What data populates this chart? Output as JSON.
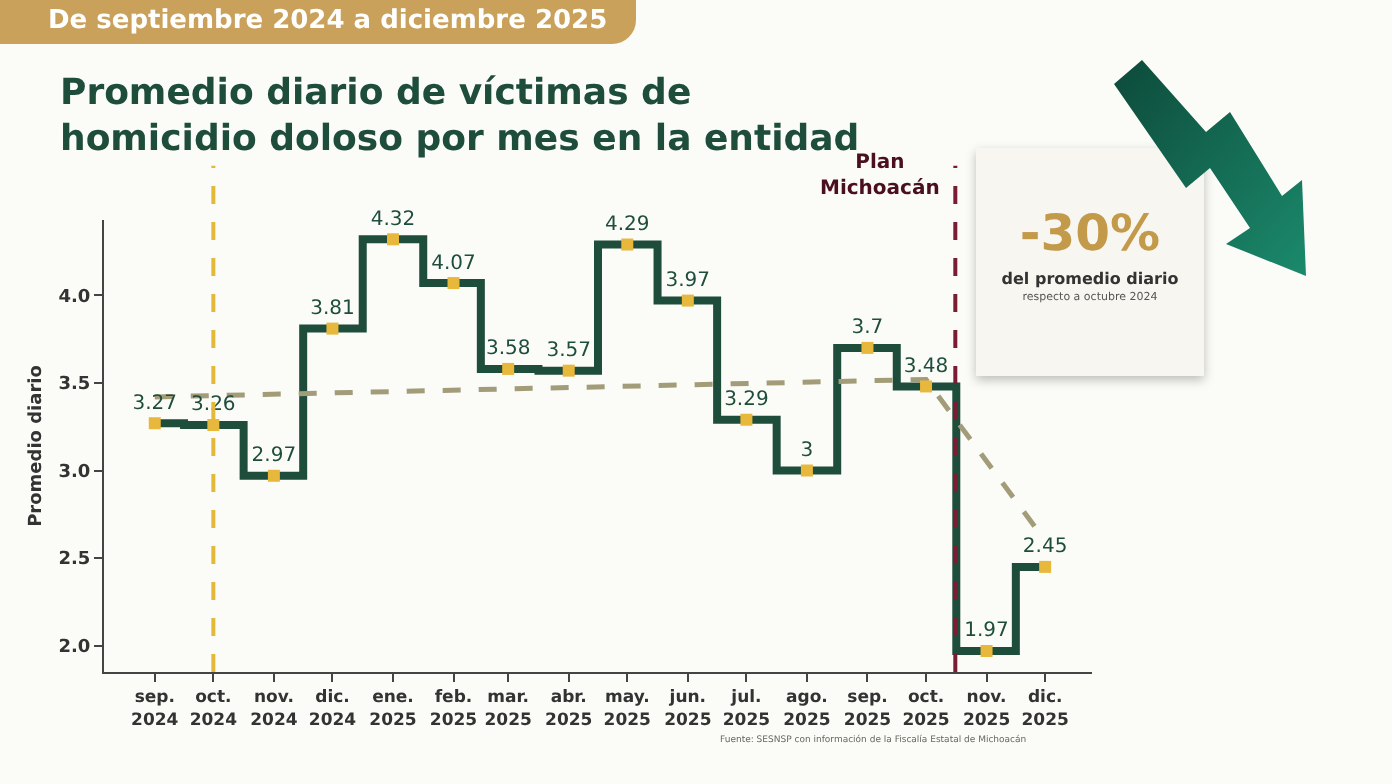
{
  "chart_data": {
    "type": "step",
    "title": "Promedio diario de víctimas de homicidio doloso por mes en la entidad",
    "subtitle": "De septiembre 2024 a diciembre 2025",
    "ylabel": "Promedio diario",
    "x": [
      "2024-09",
      "2024-10",
      "2024-11",
      "2024-12",
      "2025-01",
      "2025-02",
      "2025-03",
      "2025-04",
      "2025-05",
      "2025-06",
      "2025-07",
      "2025-08",
      "2025-09",
      "2025-10",
      "2025-11",
      "2025-12"
    ],
    "series": [
      {
        "color": "#1e4d3b",
        "marker": "square",
        "values": [
          3.27,
          3.26,
          2.97,
          3.81,
          4.32,
          4.07,
          3.58,
          3.57,
          4.29,
          3.97,
          3.29,
          3,
          3.7,
          3.48,
          1.97,
          2.45
        ]
      },
      {
        "type": "line",
        "color": "#a39c79",
        "line_style": "dashed",
        "marker": "none",
        "x": [
          "2024-09",
          "2025-10",
          "2025-12"
        ],
        "values": [
          3.42,
          3.52,
          2.6
        ],
        "value_labels": [
          null,
          null,
          null
        ]
      }
    ],
    "data_labels": true,
    "xlim": [
      "2024-08-06",
      "2025-12-25"
    ],
    "xticks": [
      {
        "value": "2024-09",
        "label": "sep. 2024"
      },
      {
        "value": "2024-10",
        "label": "oct. 2024"
      },
      {
        "value": "2024-11",
        "label": "nov. 2024"
      },
      {
        "value": "2024-12",
        "label": "dic. 2024"
      },
      {
        "value": "2025-01",
        "label": "ene. 2025"
      },
      {
        "value": "2025-02",
        "label": "feb. 2025"
      },
      {
        "value": "2025-03",
        "label": "mar. 2025"
      },
      {
        "value": "2025-04",
        "label": "abr. 2025"
      },
      {
        "value": "2025-05",
        "label": "may. 2025"
      },
      {
        "value": "2025-06",
        "label": "jun. 2025"
      },
      {
        "value": "2025-07",
        "label": "jul. 2025"
      },
      {
        "value": "2025-08",
        "label": "ago. 2025"
      },
      {
        "value": "2025-09",
        "label": "sep. 2025"
      },
      {
        "value": "2025-10",
        "label": "oct. 2025"
      },
      {
        "value": "2025-11",
        "label": "nov. 2025"
      },
      {
        "value": "2025-12",
        "label": "dic. 2025"
      }
    ],
    "ylim": [
      1.85,
      4.43
    ],
    "yticks": [
      {
        "value": 2,
        "label": "2.0"
      },
      {
        "value": 2.5,
        "label": "2.5"
      },
      {
        "value": 3,
        "label": "3.0"
      },
      {
        "value": 3.5,
        "label": "3.5"
      },
      {
        "value": 4,
        "label": "4.0"
      }
    ],
    "ref_lines": [
      {
        "axis": "x",
        "value": "2024-10",
        "color": "#e2b93b",
        "line_style": "dashed"
      },
      {
        "axis": "x",
        "value": "2025-10-16",
        "label": "Plan Michoacán",
        "color": "#7a1d33",
        "line_style": "dashed"
      }
    ],
    "annotations": [
      "-30%",
      "del promedio diario",
      "respecto a octubre 2024",
      "Fuente: SESNSP con información de la Fiscalía Estatal de Michoacán"
    ],
    "grid": false
  }
}
